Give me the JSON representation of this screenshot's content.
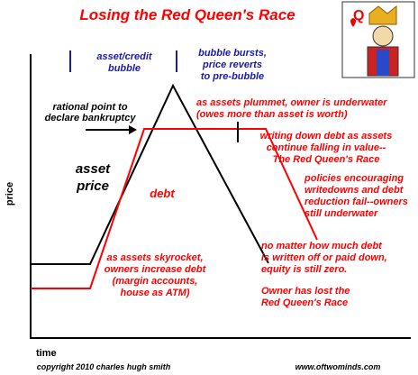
{
  "title": "Losing the Red Queen's Race",
  "axes": {
    "y_label": "price",
    "x_label": "time"
  },
  "annotations": {
    "bubble": [
      "asset/credit",
      "bubble"
    ],
    "burst": [
      "bubble bursts,",
      "price reverts",
      "to pre-bubble"
    ],
    "rational": [
      "rational point to",
      "declare bankruptcy"
    ],
    "asset_price": [
      "asset",
      "price"
    ],
    "debt": "debt",
    "plummet": [
      "as assets plummet, owner is underwater",
      "(owes more than asset is worth)"
    ],
    "writing_down": [
      "writing down debt as assets",
      "continue falling in value--",
      "The Red Queen's Race"
    ],
    "policies": [
      "policies encouraging",
      "writedowns and debt",
      "reduction fail--owners",
      "still underwater"
    ],
    "no_matter": [
      "no matter how much debt",
      "is written off or paid down,",
      "equity is still zero."
    ],
    "lost": [
      "Owner has lost the",
      "Red Queen's Race"
    ],
    "skyrocket": [
      "as assets skyrocket,",
      "owners increase debt",
      "(margin accounts,",
      "house as ATM)"
    ]
  },
  "footer": {
    "copyright": "copyright 2010  charles hugh smith",
    "url": "www.oftwominds.com"
  }
}
